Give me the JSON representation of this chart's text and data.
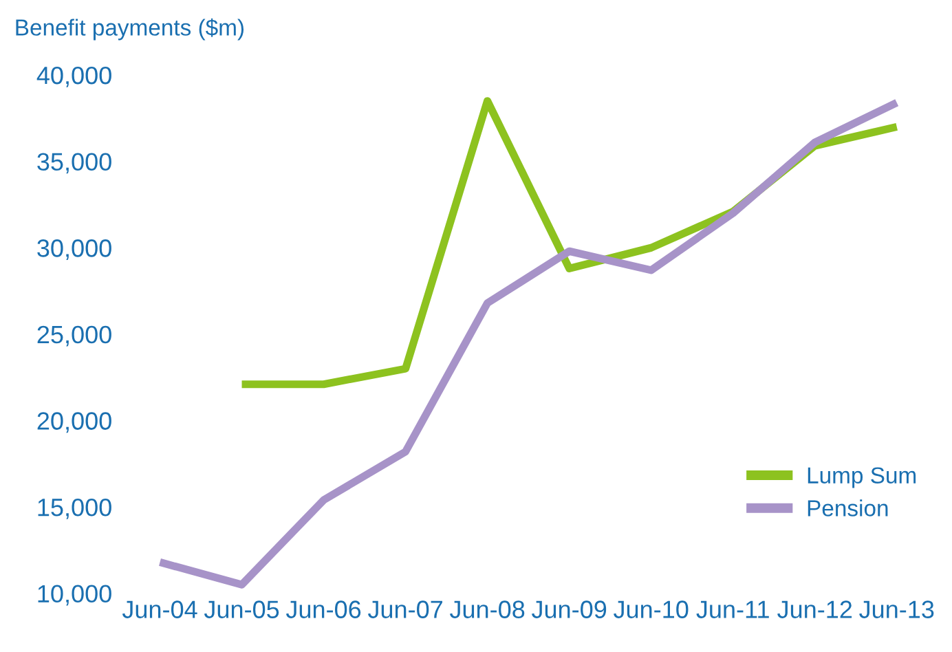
{
  "chart_data": {
    "type": "line",
    "ylabel": "Benefit payments ($m)",
    "categories": [
      "Jun-04",
      "Jun-05",
      "Jun-06",
      "Jun-07",
      "Jun-08",
      "Jun-09",
      "Jun-10",
      "Jun-11",
      "Jun-12",
      "Jun-13"
    ],
    "series": [
      {
        "name": "Lump Sum",
        "color": "#8dc21f",
        "values": [
          null,
          22100,
          22100,
          23000,
          38500,
          28800,
          30000,
          32100,
          35900,
          37000
        ]
      },
      {
        "name": "Pension",
        "color": "#a793c8",
        "values": [
          11800,
          10500,
          15400,
          18200,
          26800,
          29800,
          28700,
          32000,
          36100,
          38400
        ]
      }
    ],
    "ylim": [
      10000,
      40000
    ],
    "yticks": [
      {
        "value": 10000,
        "label": "10,000"
      },
      {
        "value": 15000,
        "label": "15,000"
      },
      {
        "value": 20000,
        "label": "20,000"
      },
      {
        "value": 25000,
        "label": "25,000"
      },
      {
        "value": 30000,
        "label": "30,000"
      },
      {
        "value": 35000,
        "label": "35,000"
      },
      {
        "value": 40000,
        "label": "40,000"
      }
    ],
    "grid": false,
    "legend": "bottom right",
    "marker": "none",
    "line_style": "solid"
  }
}
